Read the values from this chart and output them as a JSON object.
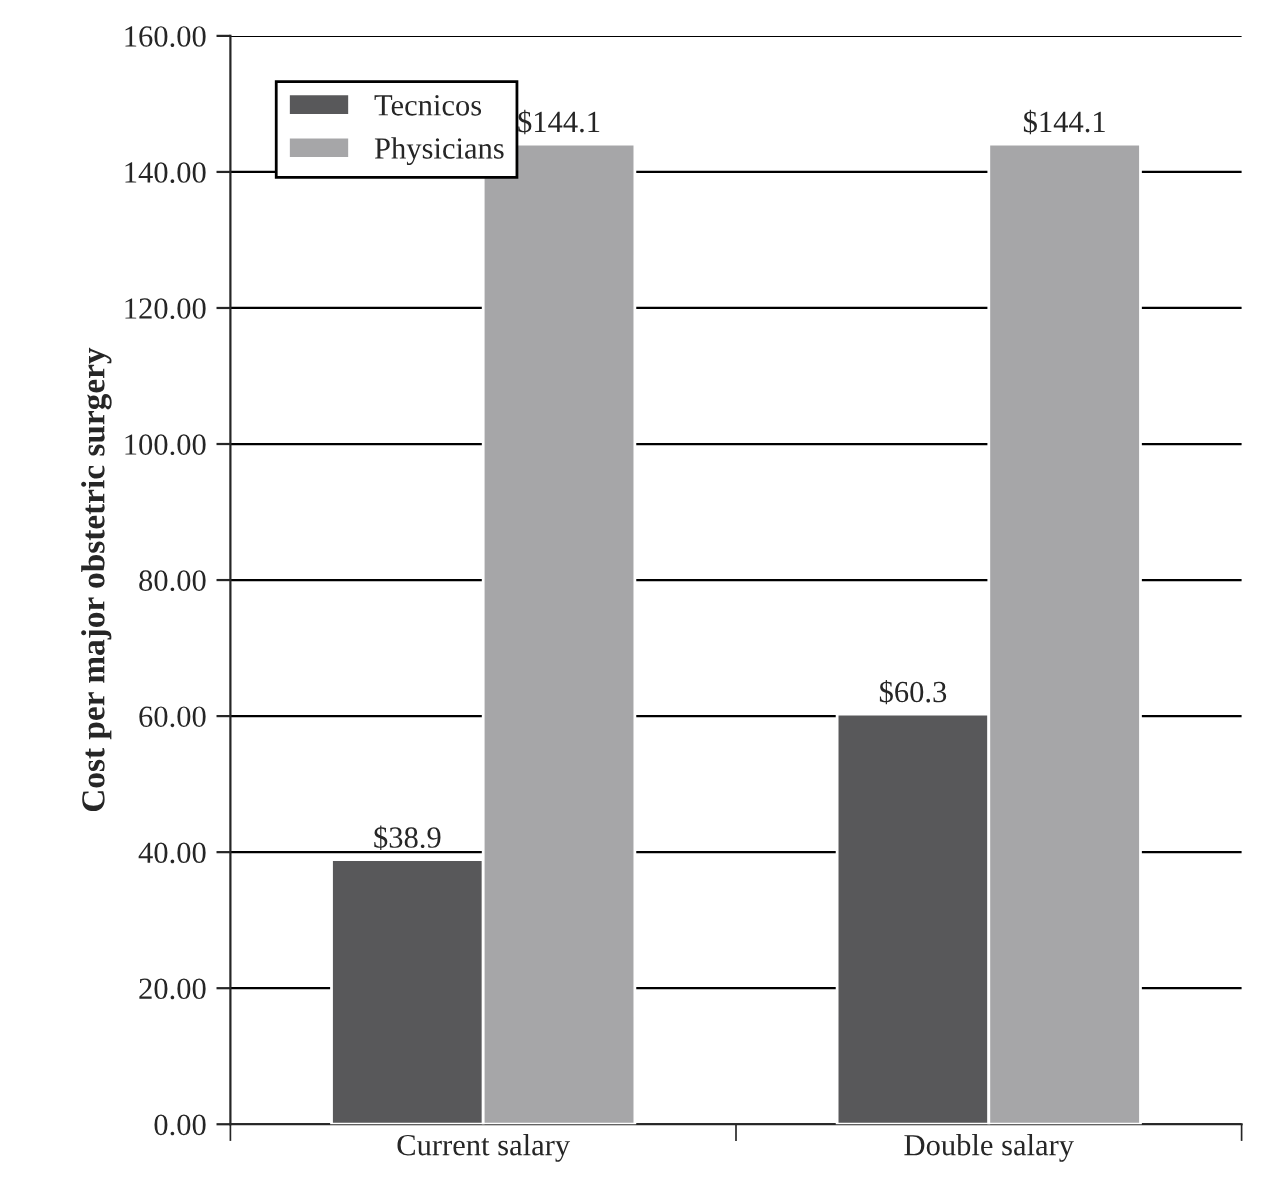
{
  "chart_data": {
    "type": "bar",
    "ylabel": "Cost per major obstetric surgery",
    "categories": [
      "Current salary",
      "Double salary"
    ],
    "series": [
      {
        "name": "Tecnicos",
        "color": "#58585a",
        "values": [
          38.9,
          60.3
        ],
        "value_labels": [
          "$38.9",
          "$60.3"
        ]
      },
      {
        "name": "Physicians",
        "color": "#a6a6a8",
        "values": [
          144.1,
          144.1
        ],
        "value_labels": [
          "$144.1",
          "$144.1"
        ]
      }
    ],
    "ylim": [
      0,
      160
    ],
    "yticks": [
      {
        "value": 0,
        "label": "0.00"
      },
      {
        "value": 20,
        "label": "20.00"
      },
      {
        "value": 40,
        "label": "40.00"
      },
      {
        "value": 60,
        "label": "60.00"
      },
      {
        "value": 80,
        "label": "80.00"
      },
      {
        "value": 100,
        "label": "100.00"
      },
      {
        "value": 120,
        "label": "120.00"
      },
      {
        "value": 140,
        "label": "140.00"
      },
      {
        "value": 160,
        "label": "160.00"
      }
    ],
    "grid": "y",
    "legend": "top left"
  }
}
